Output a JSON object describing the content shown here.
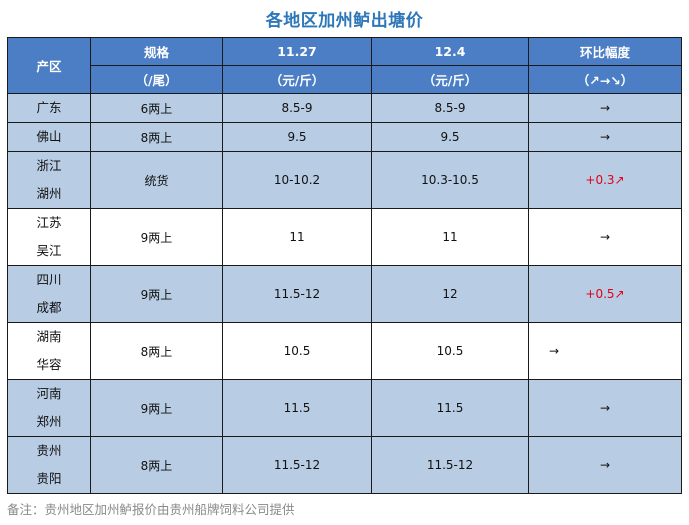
{
  "title": "各地区加州鲈出塘价",
  "headers": {
    "region": "产区",
    "spec_line1": "规格",
    "spec_line2": "（/尾）",
    "date1_line1": "11.27",
    "date1_line2": "（元/斤）",
    "date2_line1": "12.4",
    "date2_line2": "（元/斤）",
    "change_line1": "环比幅度",
    "change_line2": "（↗→↘）"
  },
  "rows": {
    "r0": {
      "region_line1": "广东",
      "spec": "6两上",
      "p1": "8.5-9",
      "p2": "8.5-9",
      "change": "→"
    },
    "r1": {
      "region_line2": "佛山",
      "spec": "8两上",
      "p1": "9.5",
      "p2": "9.5",
      "change": "→"
    },
    "r2": {
      "region_line1": "浙江",
      "region_line2": "湖州",
      "spec": "统货",
      "p1": "10-10.2",
      "p2": "10.3-10.5",
      "change": "+0.3↗"
    },
    "r3": {
      "region_line1": "江苏",
      "region_line2": "吴江",
      "spec": "9两上",
      "p1": "11",
      "p2": "11",
      "change": "→"
    },
    "r4": {
      "region_line1": "四川",
      "region_line2": "成都",
      "spec": "9两上",
      "p1": "11.5-12",
      "p2": "12",
      "change": "+0.5↗"
    },
    "r5": {
      "region_line1": "湖南",
      "region_line2": "华容",
      "spec": "8两上",
      "p1": "10.5",
      "p2": "10.5",
      "change": "→"
    },
    "r6": {
      "region_line1": "河南",
      "region_line2": "郑州",
      "spec": "9两上",
      "p1": "11.5",
      "p2": "11.5",
      "change": "→"
    },
    "r7": {
      "region_line1": "贵州",
      "region_line2": "贵阳",
      "spec": "8两上",
      "p1": "11.5-12",
      "p2": "11.5-12",
      "change": "→"
    }
  },
  "footer": "备注：贵州地区加州鲈报价由贵州船牌饲料公司提供",
  "colors": {
    "header_bg": "#4b7ec4",
    "row_blue": "#b8cce4",
    "title": "#2e77b8",
    "increase": "#e0001b"
  }
}
